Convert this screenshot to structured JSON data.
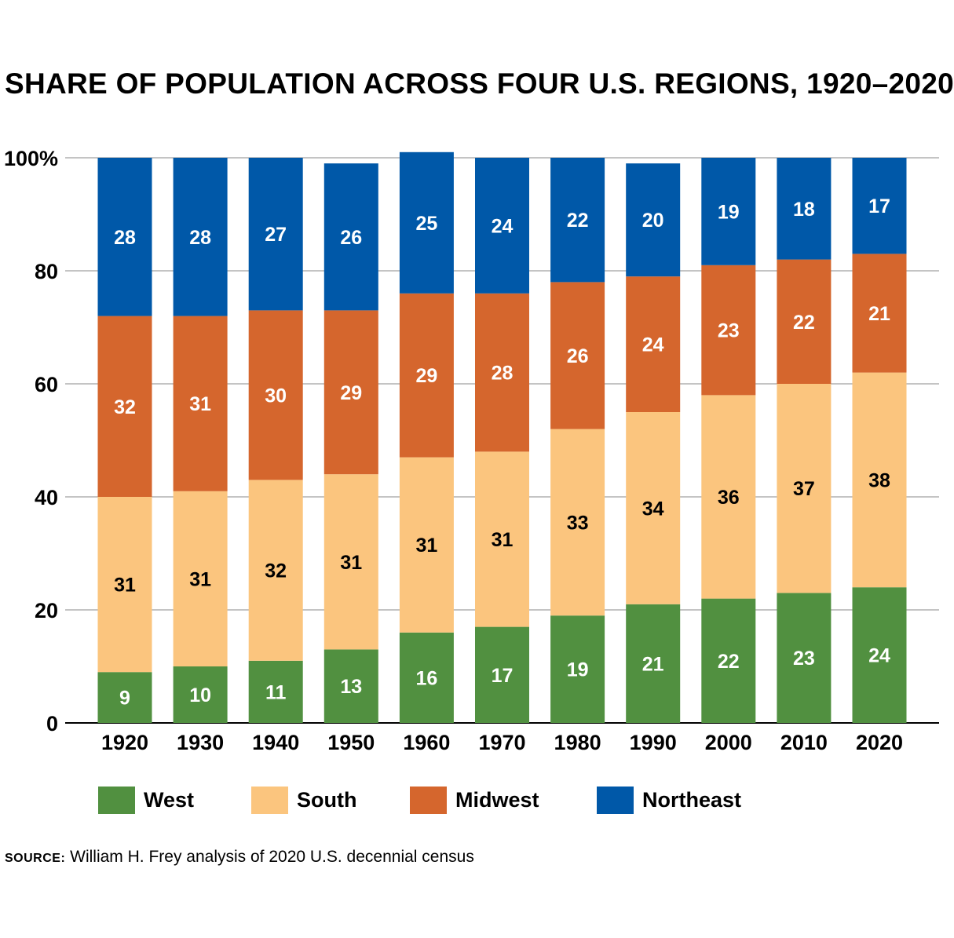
{
  "chart_data": {
    "type": "bar",
    "stacked": true,
    "title": "SHARE OF POPULATION ACROSS FOUR U.S. REGIONS, 1920–2020",
    "categories": [
      "1920",
      "1930",
      "1940",
      "1950",
      "1960",
      "1970",
      "1980",
      "1990",
      "2000",
      "2010",
      "2020"
    ],
    "series": [
      {
        "name": "West",
        "color": "#519040",
        "label_color": "#ffffff",
        "values": [
          9,
          10,
          11,
          13,
          16,
          17,
          19,
          21,
          22,
          23,
          24
        ]
      },
      {
        "name": "South",
        "color": "#fbc57e",
        "label_color": "#000000",
        "values": [
          31,
          31,
          32,
          31,
          31,
          31,
          33,
          34,
          36,
          37,
          38
        ]
      },
      {
        "name": "Midwest",
        "color": "#d5662d",
        "label_color": "#ffffff",
        "values": [
          32,
          31,
          30,
          29,
          29,
          28,
          26,
          24,
          23,
          22,
          21
        ]
      },
      {
        "name": "Northeast",
        "color": "#0058a8",
        "label_color": "#ffffff",
        "values": [
          28,
          28,
          27,
          26,
          25,
          24,
          22,
          20,
          19,
          18,
          17
        ]
      }
    ],
    "ylim": [
      0,
      100
    ],
    "yticks": [
      0,
      20,
      40,
      60,
      80,
      100
    ],
    "ytick_labels": [
      "0",
      "20",
      "40",
      "60",
      "80",
      "100%"
    ],
    "grid": true,
    "legend_position": "bottom"
  },
  "source": {
    "label": "SOURCE:",
    "text": "William H. Frey analysis of 2020 U.S. decennial census"
  }
}
